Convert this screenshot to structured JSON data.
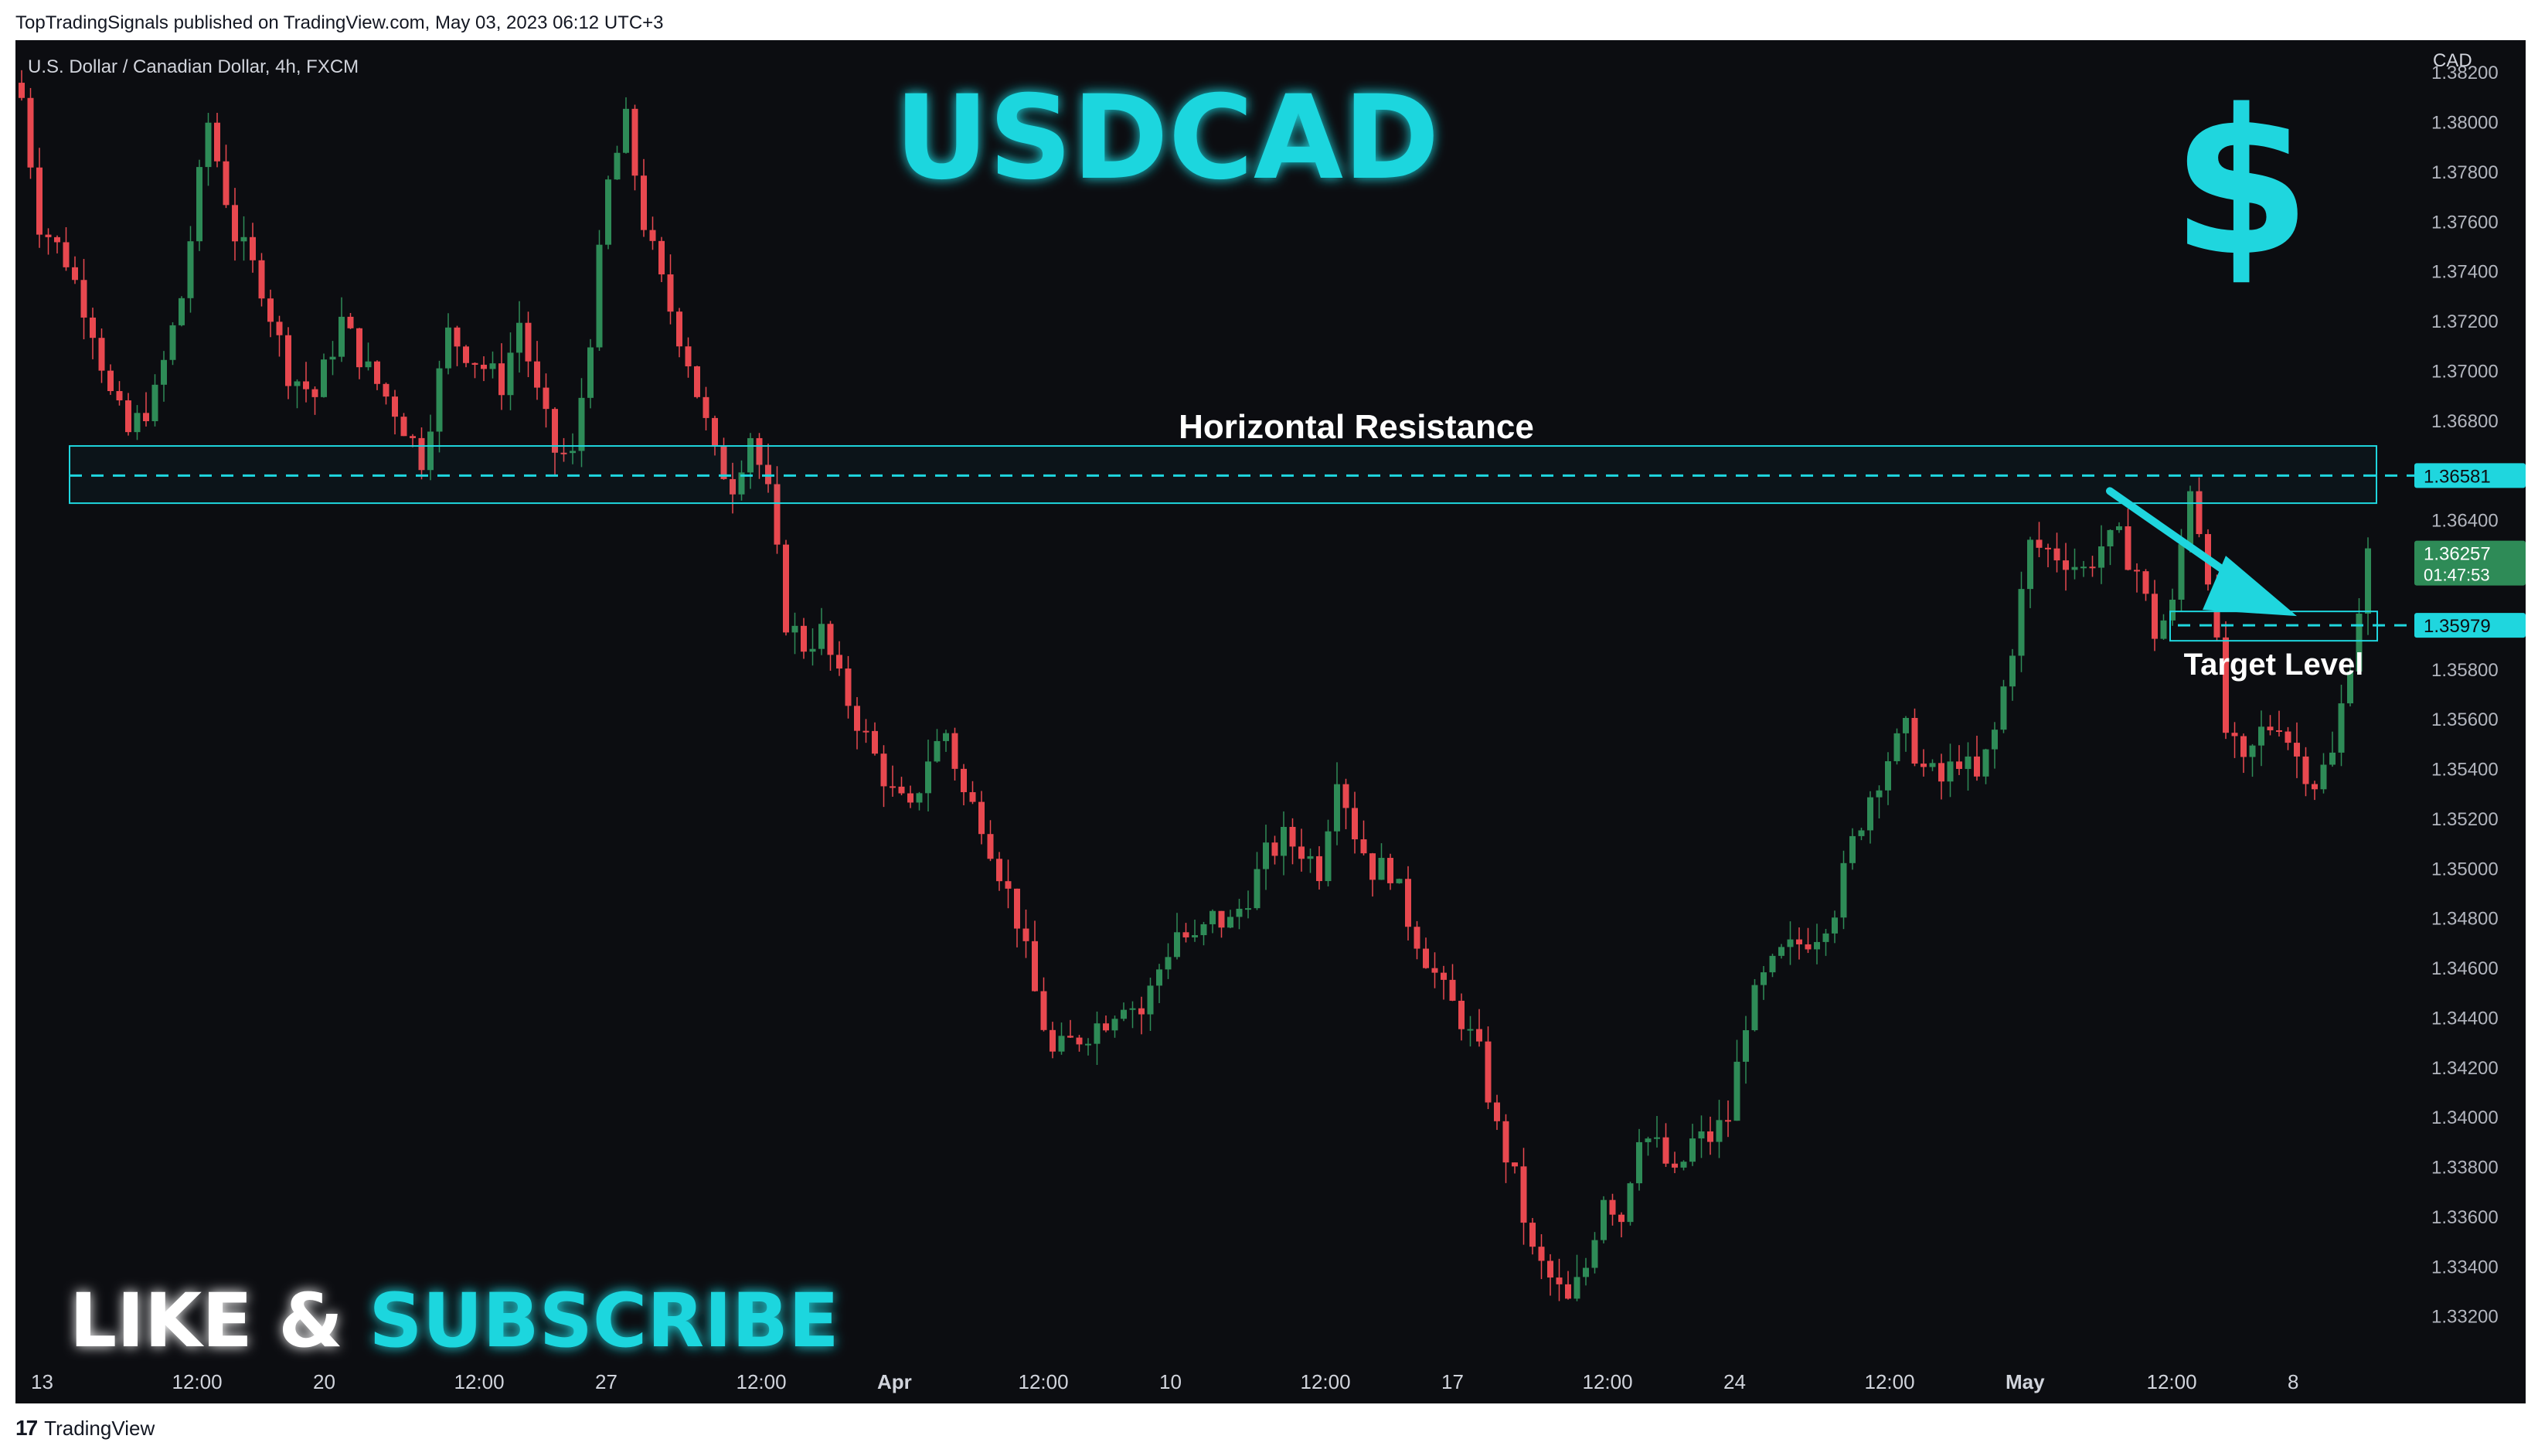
{
  "header": "TopTradingSignals published on TradingView.com, May 03, 2023 06:12 UTC+3",
  "footer": {
    "logo": "17",
    "brand": "TradingView"
  },
  "colors": {
    "background": "#0c0d11",
    "bull": "#2e8b57",
    "bear": "#e8484f",
    "cyan": "#1fd6de",
    "price_tag": "#2e8b57"
  },
  "chart_data": {
    "type": "candlestick",
    "symbol_label": "U.S. Dollar / Canadian Dollar, 4h, FXCM",
    "title": "USDCAD",
    "currency": "CAD",
    "dollar_icon": "$",
    "ylim": [
      1.3305,
      1.383
    ],
    "y_ticks": [
      "1.38200",
      "1.38000",
      "1.37800",
      "1.37600",
      "1.37400",
      "1.37200",
      "1.37000",
      "1.36800",
      "1.36600",
      "1.36400",
      "1.36200",
      "1.36000",
      "1.35800",
      "1.35600",
      "1.35400",
      "1.35200",
      "1.35000",
      "1.34800",
      "1.34600",
      "1.34400",
      "1.34200",
      "1.34000",
      "1.33800",
      "1.33600",
      "1.33400",
      "1.33200"
    ],
    "x_ticks": [
      "13",
      "12:00",
      "20",
      "12:00",
      "27",
      "12:00",
      "Apr",
      "12:00",
      "10",
      "12:00",
      "17",
      "12:00",
      "24",
      "12:00",
      "May",
      "12:00",
      "8"
    ],
    "x_ticks_bold": [
      "Apr",
      "May"
    ],
    "resistance": {
      "label": "Horizontal Resistance",
      "level": "1.36581",
      "band": [
        1.3647,
        1.367
      ]
    },
    "target": {
      "label": "Target Level",
      "level": "1.35979"
    },
    "current_price": {
      "value": "1.36257",
      "countdown": "01:47:53"
    },
    "cta": {
      "part1": "LIKE & ",
      "part2": "SUBSCRIBE"
    },
    "anchors": [
      [
        0,
        1.381
      ],
      [
        2,
        1.376
      ],
      [
        5,
        1.3745
      ],
      [
        8,
        1.3718
      ],
      [
        10,
        1.369
      ],
      [
        12,
        1.3675
      ],
      [
        15,
        1.369
      ],
      [
        18,
        1.373
      ],
      [
        21,
        1.38
      ],
      [
        24,
        1.3755
      ],
      [
        27,
        1.3735
      ],
      [
        30,
        1.37
      ],
      [
        33,
        1.369
      ],
      [
        36,
        1.372
      ],
      [
        39,
        1.37
      ],
      [
        42,
        1.3685
      ],
      [
        45,
        1.3665
      ],
      [
        48,
        1.3715
      ],
      [
        51,
        1.3705
      ],
      [
        54,
        1.3695
      ],
      [
        56,
        1.372
      ],
      [
        58,
        1.369
      ],
      [
        60,
        1.3668
      ],
      [
        62,
        1.3665
      ],
      [
        64,
        1.3715
      ],
      [
        66,
        1.3775
      ],
      [
        68,
        1.38
      ],
      [
        70,
        1.376
      ],
      [
        72,
        1.3735
      ],
      [
        75,
        1.3705
      ],
      [
        78,
        1.3665
      ],
      [
        80,
        1.3655
      ],
      [
        82,
        1.3675
      ],
      [
        84,
        1.365
      ],
      [
        86,
        1.36
      ],
      [
        88,
        1.359
      ],
      [
        90,
        1.3595
      ],
      [
        92,
        1.3575
      ],
      [
        94,
        1.356
      ],
      [
        96,
        1.3545
      ],
      [
        98,
        1.353
      ],
      [
        100,
        1.3522
      ],
      [
        102,
        1.3545
      ],
      [
        104,
        1.3555
      ],
      [
        106,
        1.353
      ],
      [
        108,
        1.352
      ],
      [
        110,
        1.35
      ],
      [
        112,
        1.348
      ],
      [
        114,
        1.345
      ],
      [
        116,
        1.3425
      ],
      [
        118,
        1.343
      ],
      [
        120,
        1.3435
      ],
      [
        122,
        1.344
      ],
      [
        124,
        1.3448
      ],
      [
        126,
        1.3442
      ],
      [
        128,
        1.346
      ],
      [
        130,
        1.3475
      ],
      [
        132,
        1.347
      ],
      [
        134,
        1.348
      ],
      [
        136,
        1.3478
      ],
      [
        138,
        1.349
      ],
      [
        140,
        1.3505
      ],
      [
        142,
        1.3512
      ],
      [
        144,
        1.3508
      ],
      [
        146,
        1.35
      ],
      [
        148,
        1.354
      ],
      [
        150,
        1.3515
      ],
      [
        152,
        1.35
      ],
      [
        154,
        1.35
      ],
      [
        156,
        1.348
      ],
      [
        158,
        1.3465
      ],
      [
        160,
        1.345
      ],
      [
        162,
        1.344
      ],
      [
        164,
        1.3425
      ],
      [
        166,
        1.3395
      ],
      [
        168,
        1.3375
      ],
      [
        170,
        1.3345
      ],
      [
        172,
        1.3335
      ],
      [
        174,
        1.3325
      ],
      [
        176,
        1.334
      ],
      [
        178,
        1.337
      ],
      [
        180,
        1.336
      ],
      [
        182,
        1.3395
      ],
      [
        184,
        1.3388
      ],
      [
        186,
        1.3375
      ],
      [
        188,
        1.339
      ],
      [
        190,
        1.3392
      ],
      [
        192,
        1.34
      ],
      [
        194,
        1.344
      ],
      [
        196,
        1.3455
      ],
      [
        198,
        1.3465
      ],
      [
        200,
        1.347
      ],
      [
        202,
        1.3475
      ],
      [
        204,
        1.3485
      ],
      [
        206,
        1.351
      ],
      [
        208,
        1.353
      ],
      [
        210,
        1.3545
      ],
      [
        212,
        1.3555
      ],
      [
        214,
        1.354
      ],
      [
        216,
        1.3535
      ],
      [
        218,
        1.3545
      ],
      [
        220,
        1.3535
      ],
      [
        222,
        1.3555
      ],
      [
        224,
        1.359
      ],
      [
        226,
        1.363
      ],
      [
        228,
        1.3628
      ],
      [
        230,
        1.3625
      ],
      [
        232,
        1.362
      ],
      [
        234,
        1.363
      ],
      [
        236,
        1.3632
      ],
      [
        238,
        1.362
      ],
      [
        240,
        1.3595
      ],
      [
        242,
        1.3605
      ],
      [
        244,
        1.3655
      ],
      [
        246,
        1.362
      ],
      [
        248,
        1.3555
      ],
      [
        250,
        1.354
      ],
      [
        252,
        1.3555
      ],
      [
        254,
        1.356
      ],
      [
        256,
        1.3545
      ],
      [
        258,
        1.3535
      ],
      [
        260,
        1.3545
      ],
      [
        262,
        1.3585
      ],
      [
        264,
        1.3626
      ]
    ]
  }
}
